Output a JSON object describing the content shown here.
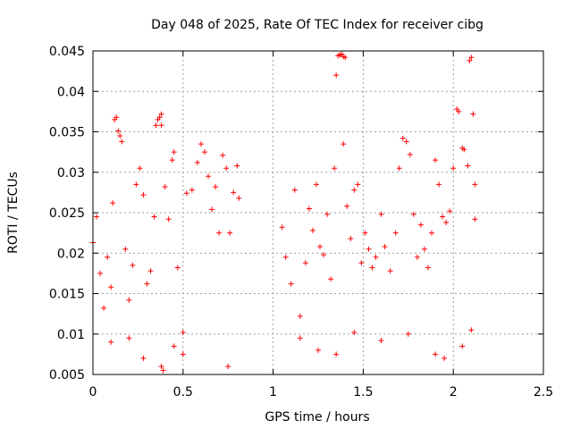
{
  "chart_data": {
    "type": "scatter",
    "title": "Day 048 of 2025, Rate Of TEC Index for receiver cibg",
    "xlabel": "GPS time / hours",
    "ylabel": "ROTI / TECUs",
    "xlim": [
      0,
      2.5
    ],
    "ylim": [
      0.005,
      0.045
    ],
    "grid": true,
    "marker": "+",
    "series": [
      {
        "name": "ROTI",
        "color": "#ff0000",
        "points": [
          [
            0.0,
            0.0213
          ],
          [
            0.02,
            0.0245
          ],
          [
            0.04,
            0.0175
          ],
          [
            0.06,
            0.0132
          ],
          [
            0.08,
            0.0195
          ],
          [
            0.1,
            0.0158
          ],
          [
            0.11,
            0.0262
          ],
          [
            0.12,
            0.0365
          ],
          [
            0.13,
            0.0368
          ],
          [
            0.14,
            0.0351
          ],
          [
            0.15,
            0.0345
          ],
          [
            0.16,
            0.0338
          ],
          [
            0.18,
            0.0205
          ],
          [
            0.2,
            0.0142
          ],
          [
            0.22,
            0.0185
          ],
          [
            0.24,
            0.0285
          ],
          [
            0.26,
            0.0305
          ],
          [
            0.28,
            0.0272
          ],
          [
            0.3,
            0.0162
          ],
          [
            0.32,
            0.0178
          ],
          [
            0.34,
            0.0245
          ],
          [
            0.35,
            0.0358
          ],
          [
            0.36,
            0.0365
          ],
          [
            0.37,
            0.0368
          ],
          [
            0.38,
            0.0372
          ],
          [
            0.38,
            0.0358
          ],
          [
            0.4,
            0.0282
          ],
          [
            0.42,
            0.0242
          ],
          [
            0.44,
            0.0315
          ],
          [
            0.45,
            0.0325
          ],
          [
            0.47,
            0.0182
          ],
          [
            0.5,
            0.0102
          ],
          [
            0.52,
            0.0274
          ],
          [
            0.55,
            0.0278
          ],
          [
            0.58,
            0.0312
          ],
          [
            0.6,
            0.0335
          ],
          [
            0.62,
            0.0325
          ],
          [
            0.64,
            0.0295
          ],
          [
            0.66,
            0.0254
          ],
          [
            0.68,
            0.0282
          ],
          [
            0.7,
            0.0225
          ],
          [
            0.72,
            0.0321
          ],
          [
            0.74,
            0.0305
          ],
          [
            0.76,
            0.0225
          ],
          [
            0.78,
            0.0275
          ],
          [
            0.8,
            0.0308
          ],
          [
            0.81,
            0.0268
          ],
          [
            0.75,
            0.006
          ],
          [
            0.38,
            0.006
          ],
          [
            0.39,
            0.0055
          ],
          [
            0.28,
            0.007
          ],
          [
            0.5,
            0.0075
          ],
          [
            0.45,
            0.0085
          ],
          [
            0.1,
            0.009
          ],
          [
            0.2,
            0.0095
          ],
          [
            1.05,
            0.0232
          ],
          [
            1.07,
            0.0195
          ],
          [
            1.1,
            0.0162
          ],
          [
            1.12,
            0.0278
          ],
          [
            1.15,
            0.0122
          ],
          [
            1.18,
            0.0188
          ],
          [
            1.2,
            0.0255
          ],
          [
            1.22,
            0.0228
          ],
          [
            1.24,
            0.0285
          ],
          [
            1.26,
            0.0208
          ],
          [
            1.28,
            0.0198
          ],
          [
            1.3,
            0.0248
          ],
          [
            1.32,
            0.0168
          ],
          [
            1.34,
            0.0305
          ],
          [
            1.35,
            0.042
          ],
          [
            1.36,
            0.0444
          ],
          [
            1.37,
            0.0445
          ],
          [
            1.38,
            0.0446
          ],
          [
            1.39,
            0.0443
          ],
          [
            1.4,
            0.0442
          ],
          [
            1.39,
            0.0335
          ],
          [
            1.41,
            0.0258
          ],
          [
            1.43,
            0.0218
          ],
          [
            1.45,
            0.0278
          ],
          [
            1.47,
            0.0285
          ],
          [
            1.49,
            0.0188
          ],
          [
            1.51,
            0.0225
          ],
          [
            1.53,
            0.0205
          ],
          [
            1.55,
            0.0182
          ],
          [
            1.57,
            0.0195
          ],
          [
            1.6,
            0.0248
          ],
          [
            1.62,
            0.0208
          ],
          [
            1.65,
            0.0178
          ],
          [
            1.68,
            0.0225
          ],
          [
            1.7,
            0.0305
          ],
          [
            1.72,
            0.0342
          ],
          [
            1.74,
            0.0338
          ],
          [
            1.76,
            0.0322
          ],
          [
            1.78,
            0.0248
          ],
          [
            1.8,
            0.0195
          ],
          [
            1.82,
            0.0235
          ],
          [
            1.84,
            0.0205
          ],
          [
            1.86,
            0.0182
          ],
          [
            1.88,
            0.0225
          ],
          [
            1.9,
            0.0315
          ],
          [
            1.92,
            0.0285
          ],
          [
            1.94,
            0.0245
          ],
          [
            1.96,
            0.0238
          ],
          [
            1.98,
            0.0252
          ],
          [
            2.0,
            0.0305
          ],
          [
            2.02,
            0.0378
          ],
          [
            2.03,
            0.0375
          ],
          [
            2.05,
            0.033
          ],
          [
            2.06,
            0.0328
          ],
          [
            2.08,
            0.0308
          ],
          [
            2.09,
            0.0438
          ],
          [
            2.1,
            0.0442
          ],
          [
            2.11,
            0.0372
          ],
          [
            2.12,
            0.0285
          ],
          [
            2.12,
            0.0242
          ],
          [
            1.95,
            0.007
          ],
          [
            1.9,
            0.0075
          ],
          [
            1.35,
            0.0075
          ],
          [
            1.25,
            0.008
          ],
          [
            1.15,
            0.0095
          ],
          [
            2.05,
            0.0085
          ],
          [
            2.1,
            0.0105
          ],
          [
            1.6,
            0.0092
          ],
          [
            1.75,
            0.01
          ],
          [
            1.45,
            0.0102
          ]
        ]
      }
    ]
  }
}
